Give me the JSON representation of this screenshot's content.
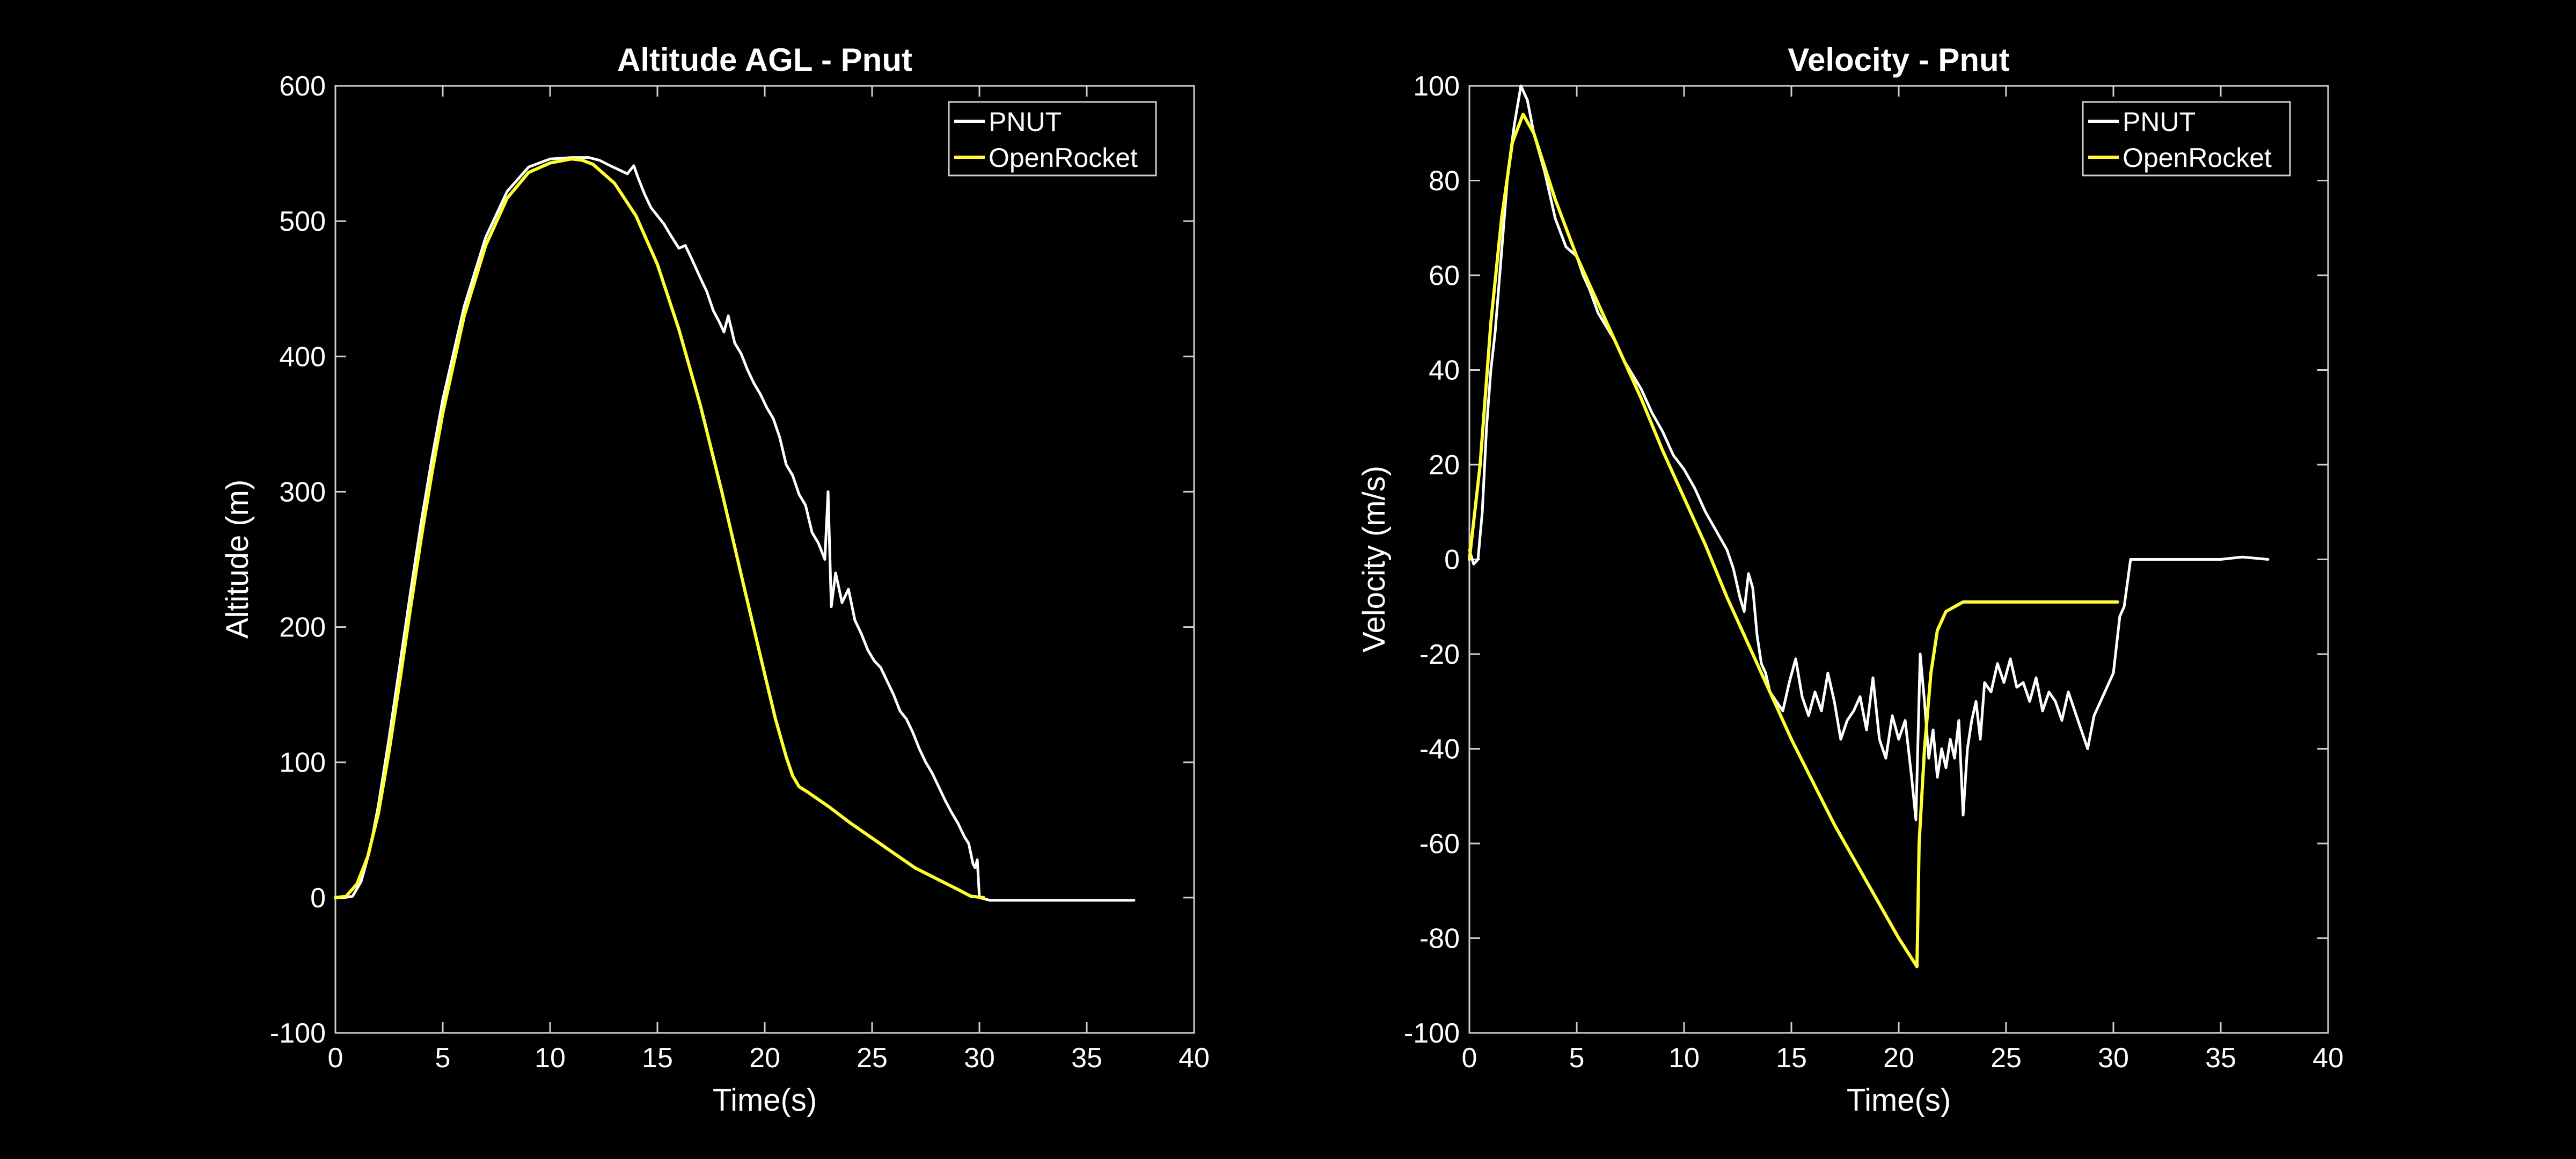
{
  "figure": {
    "background": "#000000",
    "axis_color": "#cfcfcf",
    "text_color": "#ffffff"
  },
  "chart_data": [
    {
      "type": "line",
      "title": "Altitude AGL - Pnut",
      "xlabel": "Time(s)",
      "ylabel": "Altitude (m)",
      "xlim": [
        0,
        40
      ],
      "ylim": [
        -100,
        600
      ],
      "xticks": [
        0,
        5,
        10,
        15,
        20,
        25,
        30,
        35,
        40
      ],
      "yticks": [
        -100,
        0,
        100,
        200,
        300,
        400,
        500,
        600
      ],
      "grid": false,
      "legend": "top-right",
      "series": [
        {
          "name": "PNUT",
          "color": "#ffffff",
          "points": [
            [
              0,
              0
            ],
            [
              0.4,
              0
            ],
            [
              0.8,
              1
            ],
            [
              1.2,
              12
            ],
            [
              1.6,
              35
            ],
            [
              2,
              68
            ],
            [
              2.5,
              118
            ],
            [
              3,
              172
            ],
            [
              3.5,
              226
            ],
            [
              4,
              278
            ],
            [
              4.5,
              325
            ],
            [
              5,
              368
            ],
            [
              6,
              437
            ],
            [
              7,
              488
            ],
            [
              8,
              522
            ],
            [
              9,
              540
            ],
            [
              10,
              546
            ],
            [
              11,
              547
            ],
            [
              11.8,
              547
            ],
            [
              12.3,
              545
            ],
            [
              12.8,
              541
            ],
            [
              13.2,
              538
            ],
            [
              13.6,
              535
            ],
            [
              13.9,
              541
            ],
            [
              14.1,
              532
            ],
            [
              14.4,
              520
            ],
            [
              14.7,
              510
            ],
            [
              15,
              504
            ],
            [
              15.3,
              498
            ],
            [
              15.6,
              490
            ],
            [
              16,
              480
            ],
            [
              16.3,
              482
            ],
            [
              16.6,
              472
            ],
            [
              17,
              458
            ],
            [
              17.3,
              448
            ],
            [
              17.6,
              434
            ],
            [
              17.9,
              425
            ],
            [
              18.1,
              418
            ],
            [
              18.3,
              430
            ],
            [
              18.6,
              410
            ],
            [
              18.9,
              402
            ],
            [
              19.2,
              390
            ],
            [
              19.5,
              380
            ],
            [
              19.8,
              372
            ],
            [
              20.1,
              362
            ],
            [
              20.4,
              354
            ],
            [
              20.7,
              340
            ],
            [
              21,
              320
            ],
            [
              21.3,
              312
            ],
            [
              21.6,
              298
            ],
            [
              21.9,
              290
            ],
            [
              22.2,
              270
            ],
            [
              22.5,
              262
            ],
            [
              22.8,
              250
            ],
            [
              22.95,
              300
            ],
            [
              23.1,
              215
            ],
            [
              23.3,
              240
            ],
            [
              23.6,
              218
            ],
            [
              23.9,
              228
            ],
            [
              24.2,
              205
            ],
            [
              24.5,
              195
            ],
            [
              24.8,
              183
            ],
            [
              25.1,
              175
            ],
            [
              25.4,
              170
            ],
            [
              25.7,
              160
            ],
            [
              26,
              150
            ],
            [
              26.3,
              138
            ],
            [
              26.6,
              132
            ],
            [
              26.9,
              122
            ],
            [
              27.2,
              110
            ],
            [
              27.5,
              100
            ],
            [
              27.8,
              92
            ],
            [
              28.1,
              82
            ],
            [
              28.4,
              72
            ],
            [
              28.7,
              63
            ],
            [
              29,
              55
            ],
            [
              29.3,
              45
            ],
            [
              29.5,
              40
            ],
            [
              29.7,
              25
            ],
            [
              29.8,
              22
            ],
            [
              29.9,
              28
            ],
            [
              30,
              0
            ],
            [
              30.5,
              -2
            ],
            [
              32,
              -2
            ],
            [
              34,
              -2
            ],
            [
              36,
              -2
            ],
            [
              37.2,
              -2
            ]
          ]
        },
        {
          "name": "OpenRocket",
          "color": "#ffff33",
          "points": [
            [
              0,
              0
            ],
            [
              0.5,
              1
            ],
            [
              1,
              10
            ],
            [
              1.5,
              30
            ],
            [
              2,
              62
            ],
            [
              2.5,
              108
            ],
            [
              3,
              160
            ],
            [
              3.5,
              214
            ],
            [
              4,
              266
            ],
            [
              4.5,
              314
            ],
            [
              5,
              358
            ],
            [
              6,
              430
            ],
            [
              7,
              482
            ],
            [
              8,
              517
            ],
            [
              9,
              536
            ],
            [
              10,
              543
            ],
            [
              11,
              546
            ],
            [
              11.5,
              545
            ],
            [
              12,
              542
            ],
            [
              13,
              528
            ],
            [
              14,
              504
            ],
            [
              15,
              468
            ],
            [
              16,
              420
            ],
            [
              17,
              364
            ],
            [
              18,
              300
            ],
            [
              19,
              232
            ],
            [
              20,
              165
            ],
            [
              20.5,
              132
            ],
            [
              21,
              104
            ],
            [
              21.3,
              90
            ],
            [
              21.6,
              82
            ],
            [
              22,
              78
            ],
            [
              23,
              67
            ],
            [
              24,
              55
            ],
            [
              25,
              44
            ],
            [
              26,
              33
            ],
            [
              27,
              22
            ],
            [
              28,
              14
            ],
            [
              29,
              6
            ],
            [
              29.6,
              1
            ],
            [
              30.2,
              0
            ]
          ]
        }
      ]
    },
    {
      "type": "line",
      "title": "Velocity - Pnut",
      "xlabel": "Time(s)",
      "ylabel": "Velocity (m/s)",
      "xlim": [
        0,
        40
      ],
      "ylim": [
        -100,
        100
      ],
      "xticks": [
        0,
        5,
        10,
        15,
        20,
        25,
        30,
        35,
        40
      ],
      "yticks": [
        -100,
        -80,
        -60,
        -40,
        -20,
        0,
        20,
        40,
        60,
        80,
        100
      ],
      "grid": false,
      "legend": "top-right",
      "series": [
        {
          "name": "PNUT",
          "color": "#ffffff",
          "points": [
            [
              0,
              2
            ],
            [
              0.2,
              -1
            ],
            [
              0.4,
              0
            ],
            [
              0.6,
              10
            ],
            [
              0.8,
              28
            ],
            [
              1,
              40
            ],
            [
              1.2,
              48
            ],
            [
              1.5,
              65
            ],
            [
              1.8,
              82
            ],
            [
              2.1,
              92
            ],
            [
              2.4,
              100
            ],
            [
              2.7,
              97
            ],
            [
              3,
              90
            ],
            [
              3.5,
              82
            ],
            [
              4,
              72
            ],
            [
              4.5,
              66
            ],
            [
              5,
              64
            ],
            [
              5.3,
              60
            ],
            [
              5.6,
              57
            ],
            [
              6,
              52
            ],
            [
              6.4,
              49
            ],
            [
              6.8,
              46
            ],
            [
              7.2,
              42
            ],
            [
              7.6,
              39
            ],
            [
              8,
              36
            ],
            [
              8.5,
              31
            ],
            [
              9,
              27
            ],
            [
              9.5,
              22
            ],
            [
              10,
              19
            ],
            [
              10.5,
              15
            ],
            [
              11,
              10
            ],
            [
              11.5,
              6
            ],
            [
              12,
              2
            ],
            [
              12.3,
              -2
            ],
            [
              12.6,
              -8
            ],
            [
              12.8,
              -11
            ],
            [
              13,
              -3
            ],
            [
              13.2,
              -6
            ],
            [
              13.4,
              -16
            ],
            [
              13.6,
              -22
            ],
            [
              13.8,
              -24
            ],
            [
              14,
              -28
            ],
            [
              14.3,
              -30
            ],
            [
              14.6,
              -32
            ],
            [
              14.9,
              -26
            ],
            [
              15.2,
              -21
            ],
            [
              15.5,
              -29
            ],
            [
              15.8,
              -33
            ],
            [
              16.1,
              -28
            ],
            [
              16.4,
              -32
            ],
            [
              16.7,
              -24
            ],
            [
              17,
              -30
            ],
            [
              17.3,
              -38
            ],
            [
              17.6,
              -34
            ],
            [
              17.9,
              -32
            ],
            [
              18.2,
              -29
            ],
            [
              18.5,
              -36
            ],
            [
              18.8,
              -25
            ],
            [
              19.1,
              -38
            ],
            [
              19.4,
              -42
            ],
            [
              19.7,
              -33
            ],
            [
              20,
              -38
            ],
            [
              20.3,
              -34
            ],
            [
              20.6,
              -46
            ],
            [
              20.8,
              -55
            ],
            [
              21,
              -20
            ],
            [
              21.2,
              -30
            ],
            [
              21.4,
              -42
            ],
            [
              21.6,
              -36
            ],
            [
              21.8,
              -46
            ],
            [
              22,
              -40
            ],
            [
              22.2,
              -44
            ],
            [
              22.4,
              -38
            ],
            [
              22.6,
              -42
            ],
            [
              22.8,
              -34
            ],
            [
              23,
              -54
            ],
            [
              23.2,
              -40
            ],
            [
              23.4,
              -34
            ],
            [
              23.6,
              -30
            ],
            [
              23.8,
              -38
            ],
            [
              24,
              -26
            ],
            [
              24.3,
              -28
            ],
            [
              24.6,
              -22
            ],
            [
              24.9,
              -26
            ],
            [
              25.2,
              -21
            ],
            [
              25.5,
              -27
            ],
            [
              25.8,
              -26
            ],
            [
              26.1,
              -30
            ],
            [
              26.4,
              -25
            ],
            [
              26.7,
              -32
            ],
            [
              27,
              -28
            ],
            [
              27.3,
              -30
            ],
            [
              27.6,
              -34
            ],
            [
              27.9,
              -28
            ],
            [
              28.2,
              -32
            ],
            [
              28.5,
              -36
            ],
            [
              28.8,
              -40
            ],
            [
              29.1,
              -33
            ],
            [
              29.4,
              -30
            ],
            [
              29.7,
              -27
            ],
            [
              30,
              -24
            ],
            [
              30.3,
              -12
            ],
            [
              30.5,
              -10
            ],
            [
              30.8,
              0
            ],
            [
              31,
              0
            ],
            [
              33,
              0
            ],
            [
              35,
              0
            ],
            [
              36,
              0.5
            ],
            [
              37.2,
              0
            ]
          ]
        },
        {
          "name": "OpenRocket",
          "color": "#ffff33",
          "points": [
            [
              0,
              0
            ],
            [
              0.5,
              20
            ],
            [
              1,
              50
            ],
            [
              1.5,
              72
            ],
            [
              2,
              88
            ],
            [
              2.5,
              94
            ],
            [
              3,
              90
            ],
            [
              4,
              76
            ],
            [
              5,
              64
            ],
            [
              6,
              54
            ],
            [
              7,
              44
            ],
            [
              8,
              34
            ],
            [
              9,
              23
            ],
            [
              10,
              13
            ],
            [
              11,
              3
            ],
            [
              12,
              -8
            ],
            [
              13,
              -18
            ],
            [
              14,
              -28
            ],
            [
              15,
              -38
            ],
            [
              16,
              -47
            ],
            [
              17,
              -56
            ],
            [
              18,
              -64
            ],
            [
              19,
              -72
            ],
            [
              20,
              -80
            ],
            [
              20.85,
              -86
            ],
            [
              20.95,
              -60
            ],
            [
              21.2,
              -40
            ],
            [
              21.5,
              -24
            ],
            [
              21.8,
              -15
            ],
            [
              22.2,
              -11
            ],
            [
              23,
              -9
            ],
            [
              25,
              -9
            ],
            [
              28,
              -9
            ],
            [
              30.2,
              -9
            ]
          ]
        }
      ]
    }
  ]
}
